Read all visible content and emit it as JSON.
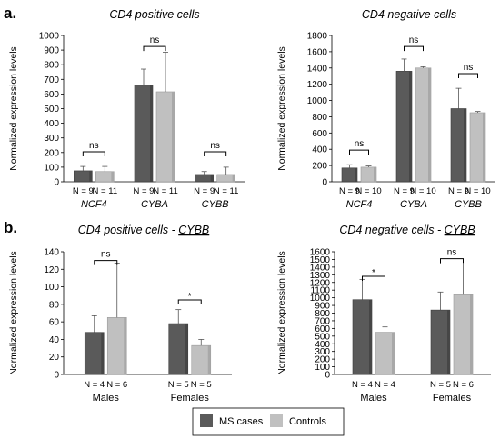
{
  "figure": {
    "panel_a_label": "a.",
    "panel_b_label": "b.",
    "legend": {
      "entries": [
        {
          "label": "MS cases",
          "color": "#5a5a5a"
        },
        {
          "label": "Controls",
          "color": "#c0c0c0"
        }
      ]
    }
  },
  "chart_data": [
    {
      "id": "a1",
      "type": "bar",
      "title": "CD4 positive cells",
      "ylabel": "Normalized expression levels",
      "xlabel": "",
      "ylim": [
        0,
        1000
      ],
      "yticks": [
        0,
        100,
        200,
        300,
        400,
        500,
        600,
        700,
        800,
        900,
        1000
      ],
      "grid": false,
      "italic_categories": true,
      "categories": [
        "NCF4",
        "CYBA",
        "CYBB"
      ],
      "series": [
        {
          "name": "MS cases",
          "values": [
            75,
            660,
            50
          ],
          "errors": [
            30,
            110,
            20
          ],
          "n": [
            "N = 9",
            "N = 9",
            "N = 9"
          ]
        },
        {
          "name": "Controls",
          "values": [
            70,
            615,
            50
          ],
          "errors": [
            35,
            270,
            50
          ],
          "n": [
            "N = 11",
            "N = 11",
            "N = 11"
          ]
        }
      ],
      "significance": [
        {
          "category": 0,
          "label": "ns",
          "y": 205
        },
        {
          "category": 1,
          "label": "ns",
          "y": 925
        },
        {
          "category": 2,
          "label": "ns",
          "y": 205
        }
      ]
    },
    {
      "id": "a2",
      "type": "bar",
      "title": "CD4 negative cells",
      "ylabel": "Normalized expression levels",
      "xlabel": "",
      "ylim": [
        0,
        1800
      ],
      "yticks": [
        0,
        200,
        400,
        600,
        800,
        1000,
        1200,
        1400,
        1600,
        1800
      ],
      "grid": false,
      "italic_categories": true,
      "categories": [
        "NCF4",
        "CYBA",
        "CYBB"
      ],
      "series": [
        {
          "name": "MS cases",
          "values": [
            170,
            1360,
            900
          ],
          "errors": [
            40,
            150,
            250
          ],
          "n": [
            "N = 9",
            "N = 9",
            "N = 9"
          ]
        },
        {
          "name": "Controls",
          "values": [
            180,
            1400,
            850
          ],
          "errors": [
            15,
            15,
            15
          ],
          "n": [
            "N = 10",
            "N = 10",
            "N = 10"
          ]
        }
      ],
      "significance": [
        {
          "category": 0,
          "label": "ns",
          "y": 390
        },
        {
          "category": 1,
          "label": "ns",
          "y": 1665
        },
        {
          "category": 2,
          "label": "ns",
          "y": 1330
        }
      ]
    },
    {
      "id": "b1",
      "type": "bar",
      "title": "CD4 positive cells - ",
      "title_gene": "CYBB",
      "ylabel": "Normalized expression levels",
      "xlabel": "",
      "ylim": [
        0,
        140
      ],
      "yticks": [
        0,
        20,
        40,
        60,
        80,
        100,
        120,
        140
      ],
      "grid": false,
      "italic_categories": false,
      "categories": [
        "Males",
        "Females"
      ],
      "series": [
        {
          "name": "MS cases",
          "values": [
            48,
            58
          ],
          "errors": [
            19,
            16
          ],
          "n": [
            "N = 4",
            "N = 5"
          ]
        },
        {
          "name": "Controls",
          "values": [
            65,
            33
          ],
          "errors": [
            62,
            7
          ],
          "n": [
            "N = 6",
            "N = 5"
          ]
        }
      ],
      "significance": [
        {
          "category": 0,
          "label": "ns",
          "y": 130
        },
        {
          "category": 1,
          "label": "*",
          "y": 85
        }
      ]
    },
    {
      "id": "b2",
      "type": "bar",
      "title": "CD4 negative cells - ",
      "title_gene": "CYBB",
      "ylabel": "Normalized expression levels",
      "xlabel": "",
      "ylim": [
        0,
        1600
      ],
      "yticks": [
        0,
        100,
        200,
        300,
        400,
        500,
        600,
        700,
        800,
        900,
        1000,
        1100,
        1200,
        1300,
        1400,
        1500,
        1600
      ],
      "grid": false,
      "italic_categories": false,
      "categories": [
        "Males",
        "Females"
      ],
      "series": [
        {
          "name": "MS cases",
          "values": [
            975,
            840
          ],
          "errors": [
            265,
            235
          ],
          "n": [
            "N = 4",
            "N = 5"
          ]
        },
        {
          "name": "Controls",
          "values": [
            550,
            1040
          ],
          "errors": [
            70,
            400
          ],
          "n": [
            "N = 4",
            "N = 6"
          ]
        }
      ],
      "significance": [
        {
          "category": 0,
          "label": "*",
          "y": 1280
        },
        {
          "category": 1,
          "label": "ns",
          "y": 1510
        }
      ]
    }
  ]
}
